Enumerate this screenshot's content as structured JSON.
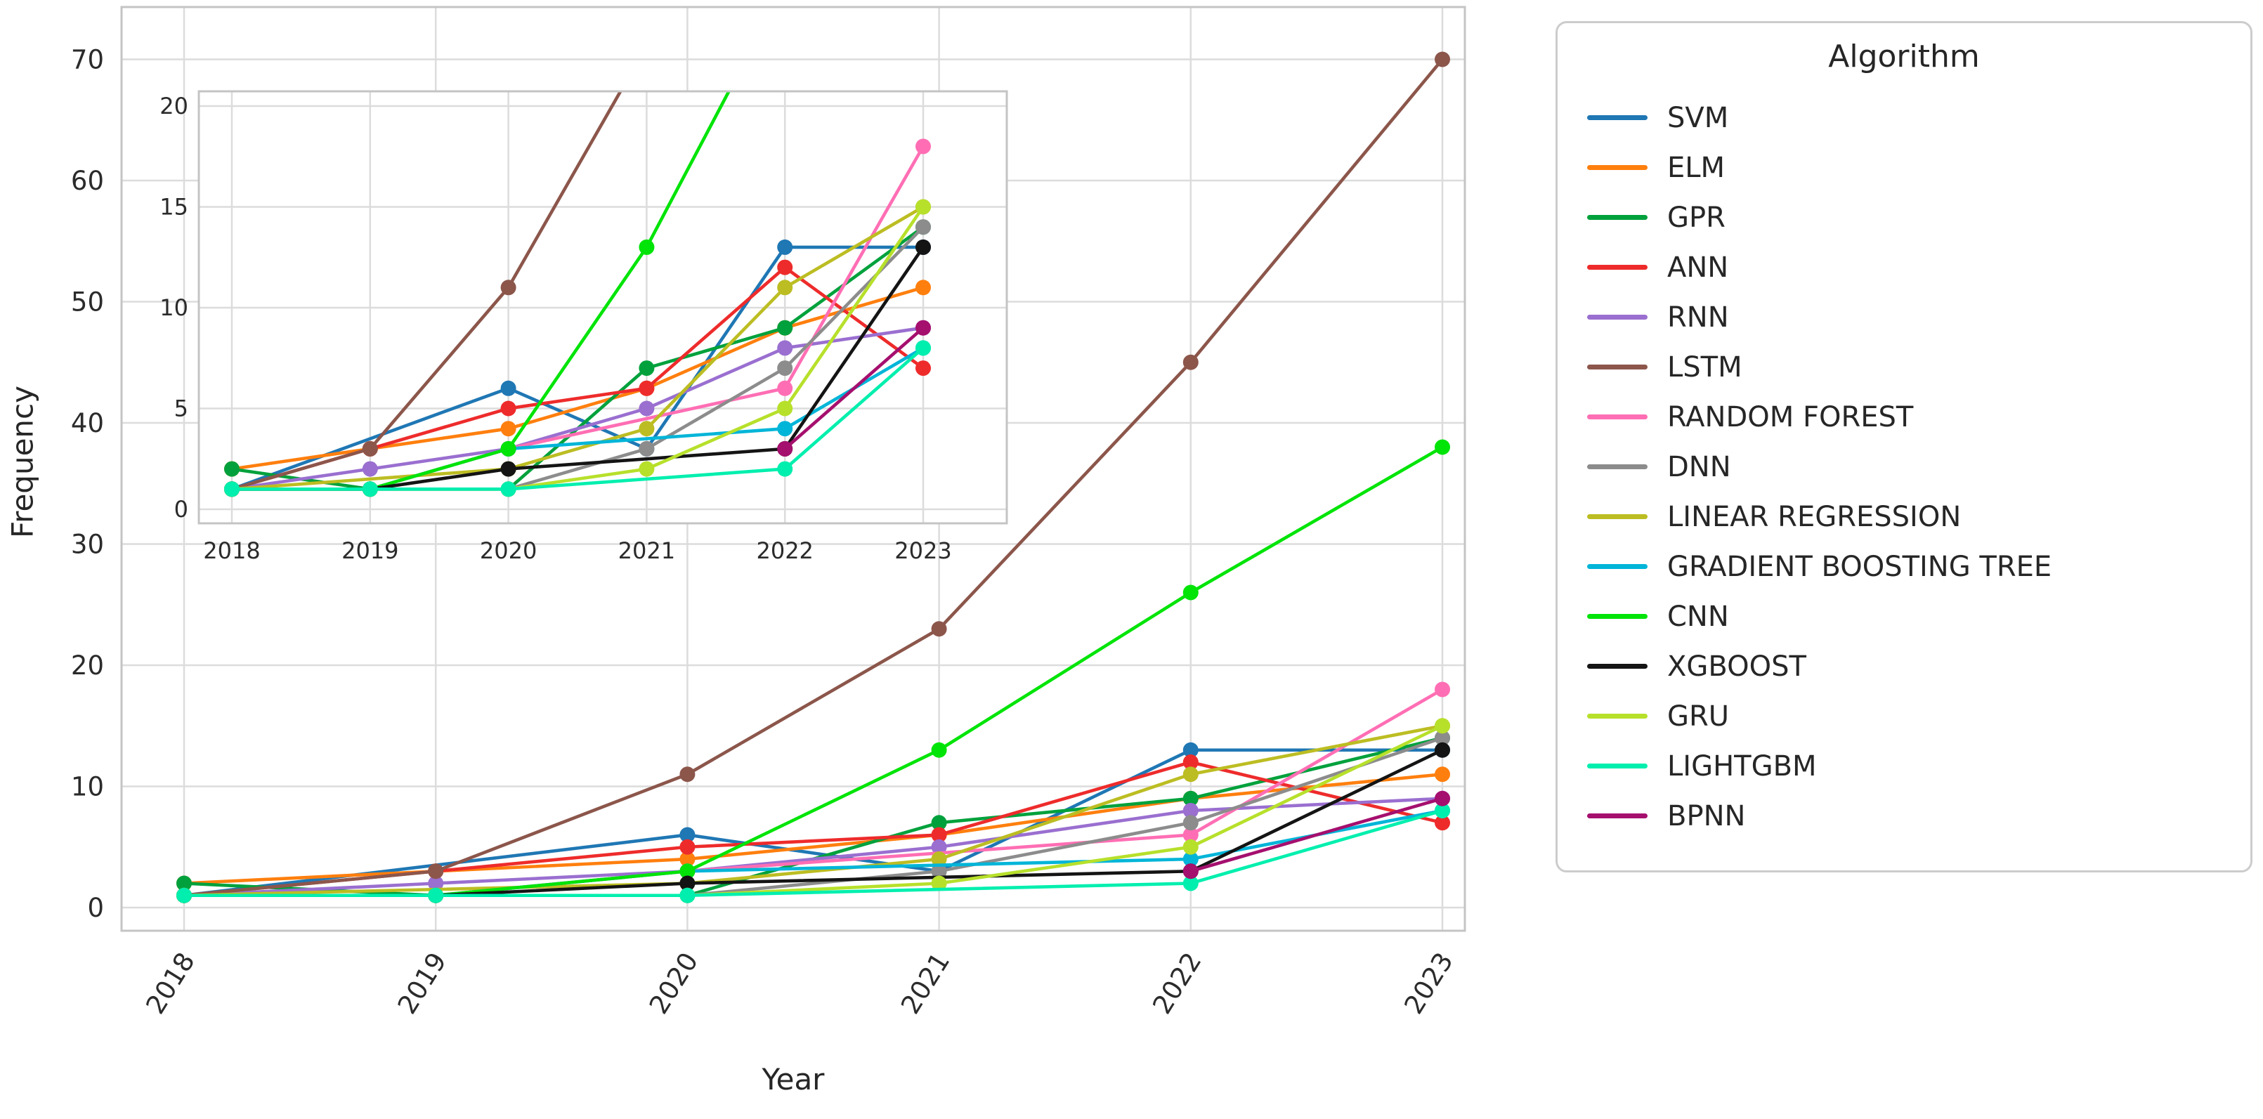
{
  "labels": {
    "xlabel": "Year",
    "ylabel": "Frequency"
  },
  "legend": {
    "title": "Algorithm"
  },
  "style": {
    "grid_color": "#dcdcdc",
    "spine_color": "#c4c4c4",
    "tick_color": "#2b2b2b",
    "background": "#ffffff"
  },
  "chart_data": {
    "type": "line",
    "title": "",
    "xlabel": "Year",
    "ylabel": "Frequency",
    "x": [
      2018,
      2019,
      2020,
      2021,
      2022,
      2023
    ],
    "x_tick_labels": [
      "2018",
      "2019",
      "2020",
      "2021",
      "2022",
      "2023"
    ],
    "main_axis": {
      "yticks": [
        0,
        10,
        20,
        30,
        40,
        50,
        60,
        70
      ],
      "ylim": [
        0,
        74
      ],
      "x_tick_rotation_deg": 60,
      "grid": true
    },
    "inset_axis": {
      "yticks": [
        0,
        5,
        10,
        15,
        20
      ],
      "ylim": [
        0,
        20.7
      ],
      "grid": true,
      "description": "zoomed view of same series, y 0-20"
    },
    "legend_title": "Algorithm",
    "legend_position": "right",
    "series": [
      {
        "name": "SVM",
        "color": "#1f77b4",
        "values": [
          1,
          null,
          6,
          3,
          13,
          13
        ]
      },
      {
        "name": "ELM",
        "color": "#ff7f0e",
        "values": [
          2,
          3,
          4,
          6,
          9,
          11
        ]
      },
      {
        "name": "GPR",
        "color": "#00a13c",
        "values": [
          2,
          1,
          1,
          7,
          9,
          14
        ]
      },
      {
        "name": "ANN",
        "color": "#ee2b2b",
        "values": [
          1,
          3,
          5,
          6,
          12,
          7
        ]
      },
      {
        "name": "RNN",
        "color": "#9a6fd0",
        "values": [
          1,
          2,
          3,
          5,
          8,
          9
        ]
      },
      {
        "name": "LSTM",
        "color": "#8c564b",
        "values": [
          1,
          3,
          11,
          23,
          45,
          70
        ]
      },
      {
        "name": "RANDOM FOREST",
        "color": "#ff6eb4",
        "values": [
          1,
          1,
          3,
          null,
          6,
          18
        ]
      },
      {
        "name": "DNN",
        "color": "#8c8c8c",
        "values": [
          1,
          1,
          1,
          3,
          7,
          14
        ]
      },
      {
        "name": "LINEAR REGRESSION",
        "color": "#bcbd22",
        "values": [
          1,
          null,
          2,
          4,
          11,
          15
        ]
      },
      {
        "name": "GRADIENT BOOSTING TREE",
        "color": "#00b5d8",
        "values": [
          1,
          1,
          3,
          null,
          4,
          8
        ]
      },
      {
        "name": "CNN",
        "color": "#00e408",
        "values": [
          1,
          1,
          3,
          13,
          26,
          38
        ]
      },
      {
        "name": "XGBOOST",
        "color": "#141414",
        "values": [
          1,
          1,
          2,
          null,
          3,
          13
        ]
      },
      {
        "name": "GRU",
        "color": "#b7e02b",
        "values": [
          1,
          1,
          1,
          2,
          5,
          15
        ]
      },
      {
        "name": "LIGHTGBM",
        "color": "#00efae",
        "values": [
          1,
          1,
          1,
          null,
          2,
          8
        ]
      },
      {
        "name": "BPNN",
        "color": "#a50f6e",
        "values": [
          null,
          null,
          null,
          null,
          3,
          9
        ]
      }
    ]
  }
}
